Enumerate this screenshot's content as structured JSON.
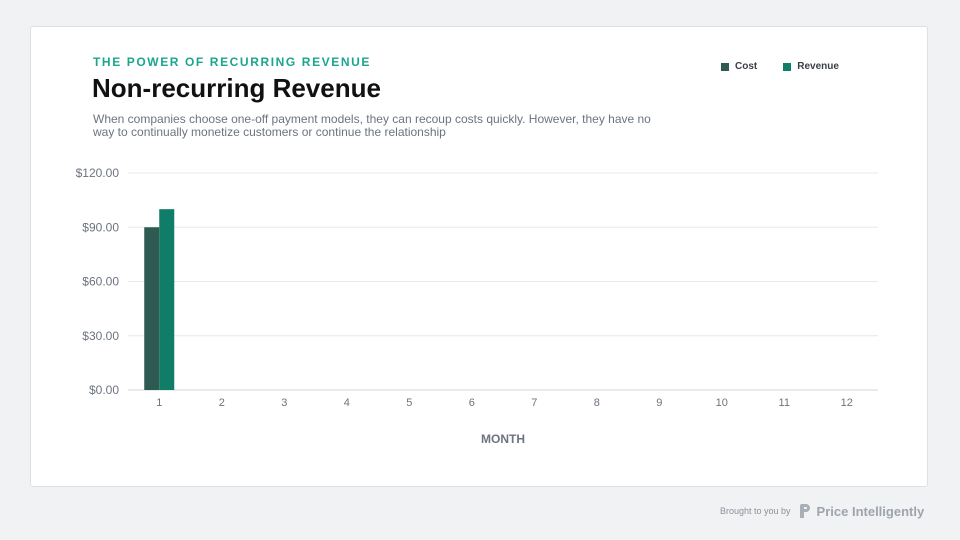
{
  "header": {
    "eyebrow": "THE POWER OF RECURRING REVENUE",
    "title": "Non-recurring Revenue",
    "subtitle": "When companies choose one-off payment models, they can recoup costs quickly. However, they have no way to continually monetize customers or continue the relationship"
  },
  "legend": {
    "cost_label": "Cost",
    "revenue_label": "Revenue"
  },
  "footer": {
    "brought_text": "Brought to you by",
    "brand_name": "Price Intelligently",
    "logo_icon": "price-intelligently-logo-icon"
  },
  "colors": {
    "accent": "#1aa58e",
    "cost": "#2f5a52",
    "revenue": "#0f7d68",
    "grid": "#e6e8eb"
  },
  "chart_data": {
    "type": "bar",
    "title": "Non-recurring Revenue",
    "xlabel": "MONTH",
    "ylabel": "",
    "categories": [
      "1",
      "2",
      "3",
      "4",
      "5",
      "6",
      "7",
      "8",
      "9",
      "10",
      "11",
      "12"
    ],
    "series": [
      {
        "name": "Cost",
        "values": [
          90,
          0,
          0,
          0,
          0,
          0,
          0,
          0,
          0,
          0,
          0,
          0
        ]
      },
      {
        "name": "Revenue",
        "values": [
          100,
          0,
          0,
          0,
          0,
          0,
          0,
          0,
          0,
          0,
          0,
          0
        ]
      }
    ],
    "ylim": [
      0,
      120
    ],
    "yticks": [
      "$0.00",
      "$30.00",
      "$60.00",
      "$90.00",
      "$120.00"
    ],
    "ytick_values": [
      0,
      30,
      60,
      90,
      120
    ],
    "grid": true,
    "legend_position": "top-right"
  }
}
